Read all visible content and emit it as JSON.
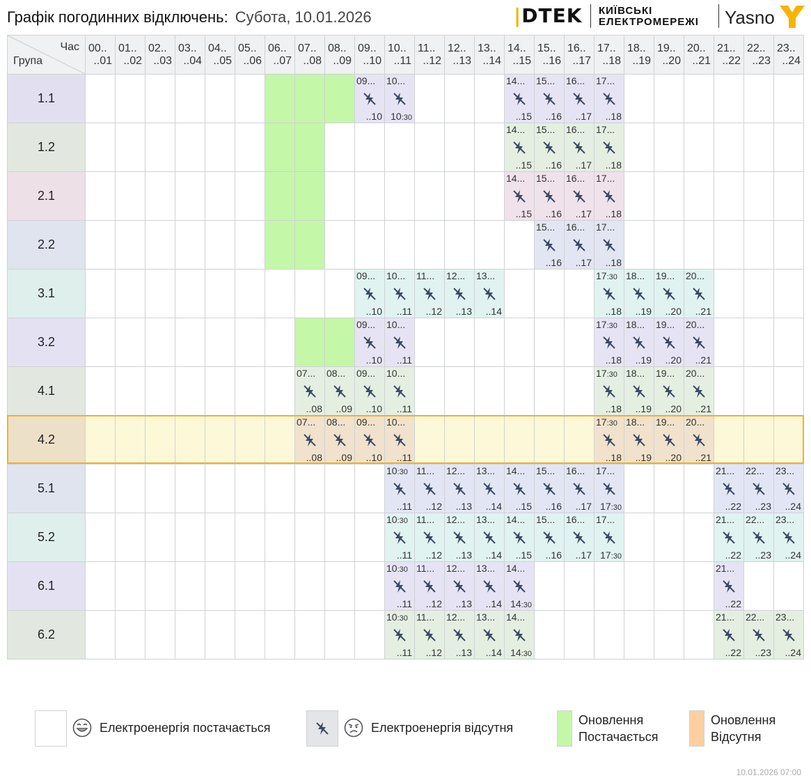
{
  "header": {
    "title": "Графік погодинних відключень:",
    "date": "Субота, 10.01.2026"
  },
  "logos": {
    "dtek": "DTEK",
    "kyiv_line1": "КИЇВСЬКІ",
    "kyiv_line2": "ЕЛЕКТРОМЕРЕЖІ",
    "yasno": "Yasno"
  },
  "table": {
    "corner_top": "Час",
    "corner_bottom": "Група",
    "hours": [
      {
        "top": "00..",
        "bottom": "..01"
      },
      {
        "top": "01..",
        "bottom": "..02"
      },
      {
        "top": "02..",
        "bottom": "..03"
      },
      {
        "top": "03..",
        "bottom": "..04"
      },
      {
        "top": "04..",
        "bottom": "..05"
      },
      {
        "top": "05..",
        "bottom": "..06"
      },
      {
        "top": "06..",
        "bottom": "..07"
      },
      {
        "top": "07..",
        "bottom": "..08"
      },
      {
        "top": "08..",
        "bottom": "..09"
      },
      {
        "top": "09..",
        "bottom": "..10"
      },
      {
        "top": "10..",
        "bottom": "..11"
      },
      {
        "top": "11..",
        "bottom": "..12"
      },
      {
        "top": "12..",
        "bottom": "..13"
      },
      {
        "top": "13..",
        "bottom": "..14"
      },
      {
        "top": "14..",
        "bottom": "..15"
      },
      {
        "top": "15..",
        "bottom": "..16"
      },
      {
        "top": "16..",
        "bottom": "..17"
      },
      {
        "top": "17..",
        "bottom": "..18"
      },
      {
        "top": "18..",
        "bottom": "..19"
      },
      {
        "top": "19..",
        "bottom": "..20"
      },
      {
        "top": "20..",
        "bottom": "..21"
      },
      {
        "top": "21..",
        "bottom": "..22"
      },
      {
        "top": "22..",
        "bottom": "..23"
      },
      {
        "top": "23..",
        "bottom": "..24"
      }
    ],
    "rows": [
      {
        "group": "1.1",
        "color": "#e2e0f0",
        "tint": "#e6e4f4",
        "highlight": false,
        "green": [
          6,
          7,
          8
        ],
        "off": [
          [
            9,
            "09...",
            "..10"
          ],
          [
            10,
            "10...",
            "10:30"
          ],
          [
            14,
            "14...",
            "..15"
          ],
          [
            15,
            "15...",
            "..16"
          ],
          [
            16,
            "16...",
            "..17"
          ],
          [
            17,
            "17...",
            "..18"
          ]
        ]
      },
      {
        "group": "1.2",
        "color": "#e2e8e0",
        "tint": "#e4efe2",
        "highlight": false,
        "green": [
          6,
          7
        ],
        "off": [
          [
            14,
            "14...",
            "..15"
          ],
          [
            15,
            "15...",
            "..16"
          ],
          [
            16,
            "16...",
            "..17"
          ],
          [
            17,
            "17...",
            "..18"
          ]
        ]
      },
      {
        "group": "2.1",
        "color": "#ede0e6",
        "tint": "#f0e2ea",
        "highlight": false,
        "green": [
          6,
          7
        ],
        "off": [
          [
            14,
            "14...",
            "..15"
          ],
          [
            15,
            "15...",
            "..16"
          ],
          [
            16,
            "16...",
            "..17"
          ],
          [
            17,
            "17...",
            "..18"
          ]
        ]
      },
      {
        "group": "2.2",
        "color": "#dfe4ee",
        "tint": "#e2e6f2",
        "highlight": false,
        "green": [
          6,
          7
        ],
        "off": [
          [
            15,
            "15...",
            "..16"
          ],
          [
            16,
            "16...",
            "..17"
          ],
          [
            17,
            "17...",
            "..18"
          ]
        ]
      },
      {
        "group": "3.1",
        "color": "#dfefec",
        "tint": "#e0f3f0",
        "highlight": false,
        "green": [],
        "off": [
          [
            9,
            "09...",
            "..10"
          ],
          [
            10,
            "10...",
            "..11"
          ],
          [
            11,
            "11...",
            "..12"
          ],
          [
            12,
            "12...",
            "..13"
          ],
          [
            13,
            "13...",
            "..14"
          ],
          [
            17,
            "17:30",
            "..18"
          ],
          [
            18,
            "18...",
            "..19"
          ],
          [
            19,
            "19...",
            "..20"
          ],
          [
            20,
            "20...",
            "..21"
          ]
        ]
      },
      {
        "group": "3.2",
        "color": "#e4e2f2",
        "tint": "#e6e4f4",
        "highlight": false,
        "green": [
          7,
          8
        ],
        "off": [
          [
            9,
            "09...",
            "..10"
          ],
          [
            10,
            "10...",
            "..11"
          ],
          [
            17,
            "17:30",
            "..18"
          ],
          [
            18,
            "18...",
            "..19"
          ],
          [
            19,
            "19...",
            "..20"
          ],
          [
            20,
            "20...",
            "..21"
          ]
        ]
      },
      {
        "group": "4.1",
        "color": "#e2e8e0",
        "tint": "#e4efe2",
        "highlight": false,
        "green": [],
        "off": [
          [
            7,
            "07...",
            "..08"
          ],
          [
            8,
            "08...",
            "..09"
          ],
          [
            9,
            "09...",
            "..10"
          ],
          [
            10,
            "10...",
            "..11"
          ],
          [
            17,
            "17:30",
            "..18"
          ],
          [
            18,
            "18...",
            "..19"
          ],
          [
            19,
            "19...",
            "..20"
          ],
          [
            20,
            "20...",
            "..21"
          ]
        ]
      },
      {
        "group": "4.2",
        "color": "#ede0c8",
        "tint": "#f0e2cc",
        "highlight": true,
        "green": [],
        "off": [
          [
            7,
            "07...",
            "..08"
          ],
          [
            8,
            "08...",
            "..09"
          ],
          [
            9,
            "09...",
            "..10"
          ],
          [
            10,
            "10...",
            "..11"
          ],
          [
            17,
            "17:30",
            "..18"
          ],
          [
            18,
            "18...",
            "..19"
          ],
          [
            19,
            "19...",
            "..20"
          ],
          [
            20,
            "20...",
            "..21"
          ]
        ]
      },
      {
        "group": "5.1",
        "color": "#dfe4ee",
        "tint": "#e2e6f4",
        "highlight": false,
        "green": [],
        "off": [
          [
            10,
            "10:30",
            "..11"
          ],
          [
            11,
            "11...",
            "..12"
          ],
          [
            12,
            "12...",
            "..13"
          ],
          [
            13,
            "13...",
            "..14"
          ],
          [
            14,
            "14...",
            "..15"
          ],
          [
            15,
            "15...",
            "..16"
          ],
          [
            16,
            "16...",
            "..17"
          ],
          [
            17,
            "17...",
            "17:30"
          ],
          [
            21,
            "21...",
            "..22"
          ],
          [
            22,
            "22...",
            "..23"
          ],
          [
            23,
            "23...",
            "..24"
          ]
        ]
      },
      {
        "group": "5.2",
        "color": "#dfefec",
        "tint": "#e0f3f0",
        "highlight": false,
        "green": [],
        "off": [
          [
            10,
            "10:30",
            "..11"
          ],
          [
            11,
            "11...",
            "..12"
          ],
          [
            12,
            "12...",
            "..13"
          ],
          [
            13,
            "13...",
            "..14"
          ],
          [
            14,
            "14...",
            "..15"
          ],
          [
            15,
            "15...",
            "..16"
          ],
          [
            16,
            "16...",
            "..17"
          ],
          [
            17,
            "17...",
            "17:30"
          ],
          [
            21,
            "21...",
            "..22"
          ],
          [
            22,
            "22...",
            "..23"
          ],
          [
            23,
            "23...",
            "..24"
          ]
        ]
      },
      {
        "group": "6.1",
        "color": "#e4e2f2",
        "tint": "#e6e4f4",
        "highlight": false,
        "green": [],
        "off": [
          [
            10,
            "10:30",
            "..11"
          ],
          [
            11,
            "11...",
            "..12"
          ],
          [
            12,
            "12...",
            "..13"
          ],
          [
            13,
            "13...",
            "..14"
          ],
          [
            14,
            "14...",
            "14:30"
          ],
          [
            21,
            "21...",
            "..22"
          ]
        ]
      },
      {
        "group": "6.2",
        "color": "#e2e8e0",
        "tint": "#e4efe2",
        "highlight": false,
        "green": [],
        "off": [
          [
            10,
            "10:30",
            "..11"
          ],
          [
            11,
            "11...",
            "..12"
          ],
          [
            12,
            "12...",
            "..13"
          ],
          [
            13,
            "13...",
            "..14"
          ],
          [
            14,
            "14...",
            "14:30"
          ],
          [
            21,
            "21...",
            "..22"
          ],
          [
            22,
            "22...",
            "..23"
          ],
          [
            23,
            "23...",
            "..24"
          ]
        ]
      }
    ]
  },
  "legend": {
    "power_on": "Електроенергія постачається",
    "power_off": "Електроенергія відсутня",
    "update_on_1": "Оновлення",
    "update_on_2": "Постачається",
    "update_off_1": "Оновлення",
    "update_off_2": "Відсутня"
  },
  "colors": {
    "green_update": "#c4f7a8",
    "orange_update": "#ffcf9f",
    "highlight_border": "#f0b02c",
    "highlight_fill": "#fdf8d8",
    "icon": "#3b4a66"
  },
  "footer": {
    "stamp": "10.01.2026   07:00"
  }
}
